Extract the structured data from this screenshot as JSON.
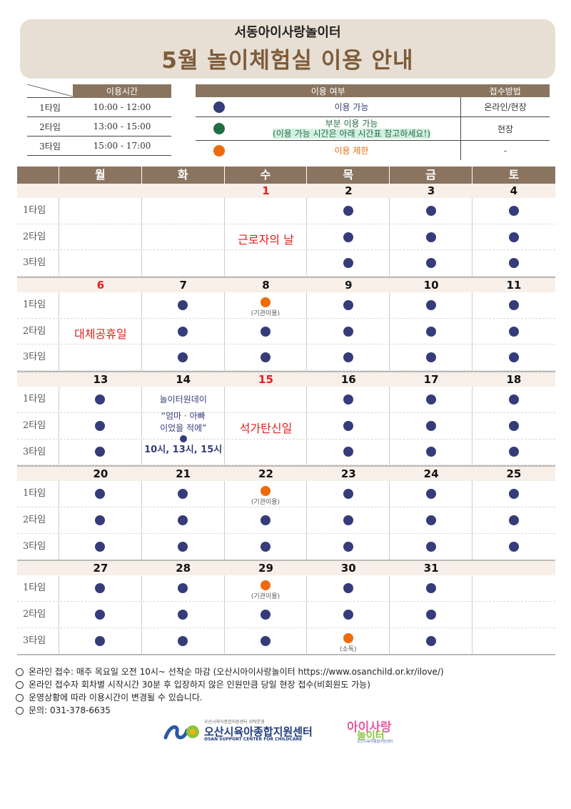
{
  "header": {
    "org": "서동아이사랑놀이터",
    "title": "5월 놀이체험실 이용 안내"
  },
  "time_table": {
    "header": "이용시간",
    "rows": [
      {
        "slot": "1타임",
        "range": "10:00 - 12:00"
      },
      {
        "slot": "2타임",
        "range": "13:00 - 15:00"
      },
      {
        "slot": "3타임",
        "range": "15:00 - 17:00"
      }
    ]
  },
  "usage_table": {
    "header_usage": "이용 여부",
    "header_method": "접수방법",
    "rows": [
      {
        "color": "navy",
        "label": "이용 가능",
        "method": "온라인/현장"
      },
      {
        "color": "green",
        "label": "부분 이용 가능",
        "label2": "(이용 가능 시간은 아래 시간표 참고하세요!)",
        "method": "현장"
      },
      {
        "color": "orange",
        "label": "이용 제한",
        "method": "-"
      }
    ]
  },
  "colors": {
    "navy": "#353c79",
    "green": "#1f6e44",
    "orange": "#ed6b0c",
    "brown": "#8a7460",
    "red": "#e21e1e"
  },
  "calendar": {
    "weekdays": [
      "월",
      "화",
      "수",
      "목",
      "금",
      "토"
    ],
    "slot_labels": [
      "1타임",
      "2타임",
      "3타임"
    ],
    "weeks": [
      {
        "dates": [
          "",
          "",
          "1",
          "2",
          "3",
          "4"
        ],
        "red": [
          false,
          false,
          true,
          false,
          false,
          false
        ],
        "slots": [
          [
            "",
            "",
            "",
            "navy",
            "navy",
            "navy"
          ],
          [
            "",
            "",
            "",
            "navy",
            "navy",
            "navy"
          ],
          [
            "",
            "",
            "",
            "navy",
            "navy",
            "navy"
          ]
        ],
        "notes": {},
        "overlay": {
          "col": 2,
          "text": "근로자의 날"
        }
      },
      {
        "dates": [
          "6",
          "7",
          "8",
          "9",
          "10",
          "11"
        ],
        "red": [
          true,
          false,
          false,
          false,
          false,
          false
        ],
        "slots": [
          [
            "",
            "navy",
            "orange",
            "navy",
            "navy",
            "navy"
          ],
          [
            "",
            "navy",
            "navy",
            "navy",
            "navy",
            "navy"
          ],
          [
            "",
            "navy",
            "navy",
            "navy",
            "navy",
            "navy"
          ]
        ],
        "notes": {
          "0-2": "(기관이용)"
        },
        "overlay": {
          "col": 0,
          "text": "대체공휴일"
        }
      },
      {
        "dates": [
          "13",
          "14",
          "15",
          "16",
          "17",
          "18"
        ],
        "red": [
          false,
          false,
          true,
          false,
          false,
          false
        ],
        "slots": [
          [
            "navy",
            "",
            "",
            "navy",
            "navy",
            "navy"
          ],
          [
            "navy",
            "",
            "",
            "navy",
            "navy",
            "navy"
          ],
          [
            "navy",
            "",
            "",
            "navy",
            "navy",
            "navy"
          ]
        ],
        "notes": {},
        "overlay": {
          "col": 2,
          "text": "석가탄신일"
        },
        "event": {
          "col": 1,
          "line1": "놀이터원데이",
          "line2": "“엄마 · 아빠",
          "line3": "이었을 적에”",
          "line4": "10시, 13시, 15시"
        }
      },
      {
        "dates": [
          "20",
          "21",
          "22",
          "23",
          "24",
          "25"
        ],
        "red": [
          false,
          false,
          false,
          false,
          false,
          false
        ],
        "slots": [
          [
            "navy",
            "navy",
            "orange",
            "navy",
            "navy",
            "navy"
          ],
          [
            "navy",
            "navy",
            "navy",
            "navy",
            "navy",
            "navy"
          ],
          [
            "navy",
            "navy",
            "navy",
            "navy",
            "navy",
            "navy"
          ]
        ],
        "notes": {
          "0-2": "(기관이용)"
        }
      },
      {
        "dates": [
          "27",
          "28",
          "29",
          "30",
          "31",
          ""
        ],
        "red": [
          false,
          false,
          false,
          false,
          false,
          false
        ],
        "slots": [
          [
            "navy",
            "navy",
            "orange",
            "navy",
            "navy",
            ""
          ],
          [
            "navy",
            "navy",
            "navy",
            "navy",
            "navy",
            ""
          ],
          [
            "navy",
            "navy",
            "navy",
            "orange",
            "navy",
            ""
          ]
        ],
        "notes": {
          "0-2": "(기관이용)",
          "2-3": "(소독)"
        }
      }
    ]
  },
  "notes": [
    "온라인 접수: 매주 목요일 오전 10시~ 선착순 마감 (오산시아이사랑놀이터 https://www.osanchild.or.kr/ilove/)",
    "온라인 접수자 회차별 시작시간 30분 후 입장하지 않은 인원만큼 당일 현장 접수(비회원도 가능)",
    "운영상황에 따라 이용시간이 변경될 수 있습니다.",
    "문의: 031-378-6635"
  ],
  "logos": {
    "center_small": "오산시육아종합지원센터 위탁운영",
    "center_name": "오산시육아종합지원센터",
    "center_eng": "OSAN SUPPORT CENTER FOR CHILDCARE",
    "play_line1": "아이사랑",
    "play_line2": "놀이터",
    "play_line3": "오산시육아종합지원센터"
  }
}
